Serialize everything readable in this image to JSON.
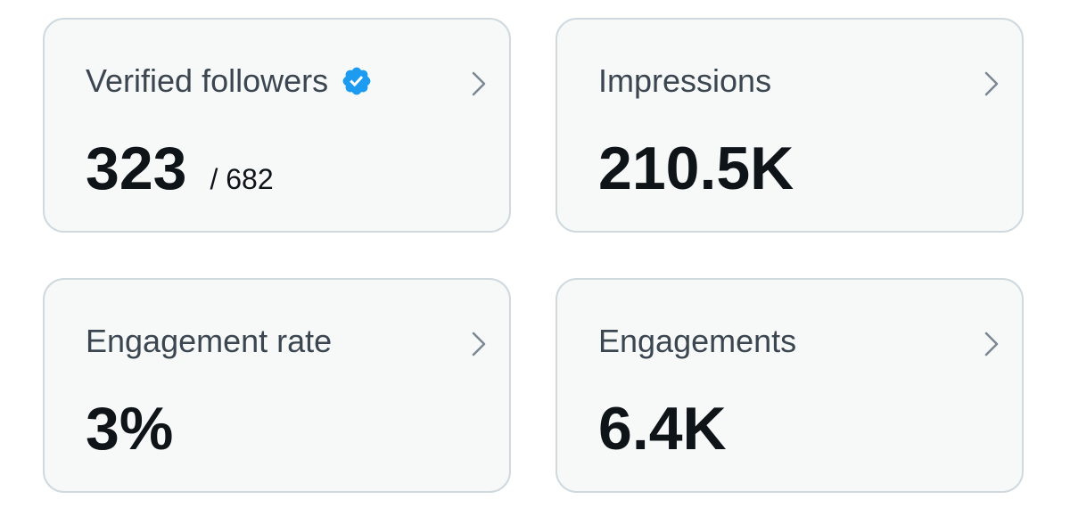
{
  "cards": [
    {
      "label": "Verified followers",
      "value": "323",
      "secondary": "/ 682"
    },
    {
      "label": "Impressions",
      "value": "210.5K"
    },
    {
      "label": "Engagement rate",
      "value": "3%"
    },
    {
      "label": "Engagements",
      "value": "6.4K"
    }
  ]
}
